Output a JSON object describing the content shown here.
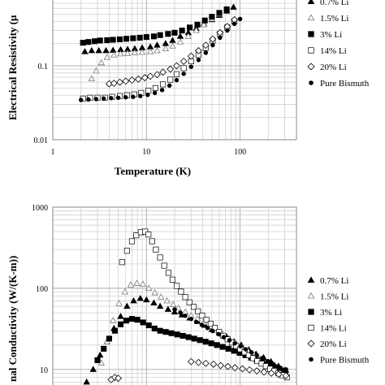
{
  "chart_data": [
    {
      "type": "scatter",
      "xscale": "log",
      "yscale": "log",
      "xlabel": "Temperature (K)",
      "ylabel": "Electrical Resistivity (μ",
      "xlim": [
        1,
        400
      ],
      "ylim": [
        0.01,
        1
      ],
      "xticks": [
        "1",
        "10",
        "100"
      ],
      "yticks": [
        "0.1",
        "0.01"
      ],
      "grid": true,
      "legend_position": "right",
      "series": [
        {
          "name": "0.7% Li",
          "marker": "triangle-filled",
          "x": [
            2.2,
            2.6,
            3.1,
            3.7,
            4.4,
            5.3,
            6.3,
            7.5,
            9,
            11,
            13,
            16,
            19,
            23,
            28,
            34,
            41,
            50,
            60,
            72,
            85
          ],
          "y": [
            0.155,
            0.16,
            0.16,
            0.16,
            0.162,
            0.165,
            0.167,
            0.17,
            0.175,
            0.18,
            0.19,
            0.2,
            0.22,
            0.25,
            0.28,
            0.32,
            0.37,
            0.42,
            0.48,
            0.55,
            0.62
          ]
        },
        {
          "name": "1.5% Li",
          "marker": "triangle-open",
          "x": [
            2.6,
            2.9,
            3.3,
            3.8,
            4.5,
            5.3,
            6.3,
            7.5,
            9,
            11,
            13,
            16,
            19,
            23,
            28,
            34,
            41,
            50,
            60,
            72
          ],
          "y": [
            0.067,
            0.085,
            0.11,
            0.13,
            0.14,
            0.145,
            0.147,
            0.15,
            0.152,
            0.155,
            0.16,
            0.17,
            0.185,
            0.21,
            0.25,
            0.3,
            0.36,
            0.43,
            0.5,
            0.58
          ]
        },
        {
          "name": "3% Li",
          "marker": "square-filled",
          "x": [
            2.1,
            2.4,
            2.8,
            3.2,
            3.8,
            4.4,
            5.2,
            6.1,
            7.2,
            8.5,
            10,
            12,
            14,
            17,
            20,
            24,
            29,
            35,
            42,
            50,
            60,
            72
          ],
          "y": [
            0.205,
            0.21,
            0.215,
            0.22,
            0.222,
            0.225,
            0.228,
            0.232,
            0.236,
            0.24,
            0.245,
            0.25,
            0.26,
            0.27,
            0.28,
            0.3,
            0.33,
            0.36,
            0.41,
            0.46,
            0.52,
            0.58
          ]
        },
        {
          "name": "14% Li",
          "marker": "square-open",
          "x": [
            2.1,
            2.5,
            3,
            3.6,
            4.3,
            5.2,
            6.2,
            7.4,
            8.8,
            10.5,
            12.5,
            15,
            18,
            21,
            25,
            30,
            36,
            43,
            51,
            61,
            73,
            87
          ],
          "y": [
            0.036,
            0.037,
            0.037,
            0.037,
            0.038,
            0.039,
            0.04,
            0.041,
            0.043,
            0.046,
            0.05,
            0.056,
            0.065,
            0.077,
            0.093,
            0.115,
            0.14,
            0.175,
            0.22,
            0.27,
            0.33,
            0.4
          ]
        },
        {
          "name": "20% Li",
          "marker": "diamond-open",
          "x": [
            4,
            4.5,
            5.2,
            6,
            7,
            8.2,
            9.6,
            11,
            13,
            15,
            18,
            21,
            25,
            30,
            36,
            43,
            51,
            61,
            73,
            87
          ],
          "y": [
            0.057,
            0.058,
            0.06,
            0.062,
            0.064,
            0.066,
            0.069,
            0.072,
            0.076,
            0.082,
            0.09,
            0.1,
            0.115,
            0.135,
            0.16,
            0.19,
            0.23,
            0.28,
            0.34,
            0.42
          ]
        },
        {
          "name": "Pure Bismuth",
          "marker": "dot",
          "x": [
            2,
            2.4,
            2.9,
            3.5,
            4.2,
            5,
            6,
            7.2,
            8.6,
            10.3,
            12.3,
            14.7,
            17.6,
            21,
            25,
            30,
            36,
            43,
            51,
            61,
            73,
            87,
            100
          ],
          "y": [
            0.0345,
            0.035,
            0.0355,
            0.036,
            0.0365,
            0.037,
            0.0375,
            0.038,
            0.039,
            0.0405,
            0.043,
            0.047,
            0.054,
            0.064,
            0.078,
            0.097,
            0.12,
            0.15,
            0.19,
            0.24,
            0.3,
            0.37,
            0.43
          ]
        }
      ]
    },
    {
      "type": "scatter",
      "xscale": "log",
      "yscale": "log",
      "xlabel": "",
      "ylabel": "nal Conductivity (W/(K-m))",
      "xlim": [
        1,
        400
      ],
      "ylim": [
        5,
        1000
      ],
      "yticks": [
        "1000",
        "100",
        "10"
      ],
      "grid": true,
      "legend_position": "right",
      "series": [
        {
          "name": "0.7% Li",
          "marker": "triangle-filled",
          "x": [
            1.9,
            2.3,
            2.7,
            3.2,
            3.8,
            4.5,
            5.3,
            6.2,
            7.3,
            8.6,
            10,
            12,
            14,
            17,
            20,
            24,
            29,
            35,
            42,
            50,
            60,
            72,
            86,
            103,
            124,
            148,
            178,
            214,
            257,
            308
          ],
          "y": [
            5.2,
            7,
            10,
            15,
            22,
            32,
            45,
            60,
            70,
            75,
            72,
            66,
            60,
            55,
            51,
            47,
            43,
            39,
            35,
            31,
            28,
            25,
            22,
            20,
            17.5,
            15.5,
            14,
            12.5,
            11,
            9.8
          ]
        },
        {
          "name": "1.5% Li",
          "marker": "triangle-open",
          "x": [
            3.3,
            3.8,
            4.4,
            5.1,
            5.9,
            6.8,
            7.9,
            9.2,
            10.6,
            12.3,
            14.3,
            16.6,
            19.3,
            22,
            26,
            30,
            35,
            41,
            48,
            56,
            65,
            76,
            89,
            104,
            121,
            141,
            165,
            193,
            226,
            264,
            308
          ],
          "y": [
            12,
            22,
            40,
            65,
            90,
            110,
            115,
            112,
            100,
            88,
            78,
            70,
            63,
            57,
            51,
            46,
            42,
            38,
            34,
            30,
            27,
            24,
            21.5,
            19,
            17,
            15,
            13.5,
            12,
            10.8,
            9.8,
            9
          ]
        },
        {
          "name": "3% Li",
          "marker": "square-filled",
          "x": [
            3,
            3.5,
            4,
            4.6,
            5.3,
            6.1,
            7,
            8,
            9.2,
            10.6,
            12.2,
            14,
            16.1,
            18.5,
            21.3,
            24.5,
            28.2,
            32.4,
            37.3,
            42.9,
            49.3,
            56.7,
            65.2,
            75,
            86.3,
            99,
            114,
            131,
            151,
            173,
            199,
            229,
            263,
            303
          ],
          "y": [
            13,
            18,
            24,
            30,
            36,
            40,
            42,
            41,
            38,
            35,
            32,
            30,
            29,
            28,
            27,
            26,
            25,
            24,
            23,
            22,
            21,
            20,
            19,
            18,
            17,
            16,
            15,
            14,
            13,
            12.2,
            11.5,
            10.8,
            10.2,
            9.7
          ]
        },
        {
          "name": "14% Li",
          "marker": "square-open",
          "x": [
            5.5,
            6.2,
            7,
            7.8,
            8.7,
            9.7,
            10.5,
            11.5,
            12.6,
            14,
            15.5,
            17.2,
            19,
            21.1,
            23.4,
            26,
            28.8,
            32,
            35.5,
            39.4,
            43.7,
            48.5,
            53.8,
            59.7,
            66.3,
            73.6,
            81.7,
            90.7,
            100.6,
            111.7,
            124,
            137.6,
            152.8,
            169.6,
            188.2,
            209,
            232,
            257,
            285,
            316
          ],
          "y": [
            210,
            290,
            380,
            450,
            490,
            500,
            460,
            380,
            300,
            240,
            190,
            155,
            128,
            107,
            91,
            78,
            67,
            59,
            52,
            46,
            41,
            36.5,
            32.5,
            29,
            26,
            23.5,
            21.5,
            19.5,
            17.8,
            16.3,
            15,
            13.8,
            12.7,
            11.8,
            11,
            10.2,
            9.6,
            9,
            8.5,
            8
          ]
        },
        {
          "name": "20% Li",
          "marker": "diamond-open",
          "x": [
            4.2,
            4.6,
            5,
            30,
            36,
            43,
            52,
            62,
            74,
            88,
            106,
            126,
            151,
            180,
            216,
            258,
            308
          ],
          "y": [
            7.5,
            8,
            7.8,
            12.5,
            12.2,
            11.9,
            11.6,
            11.2,
            10.9,
            10.5,
            10.2,
            9.9,
            9.6,
            9.3,
            9,
            8.7,
            8.4
          ]
        },
        {
          "name": "Pure Bismuth",
          "marker": "dot",
          "x": [
            20,
            23,
            26,
            30,
            34,
            39,
            45,
            51,
            59,
            67,
            77,
            88,
            101,
            115,
            132,
            151,
            173,
            198,
            226,
            258,
            295
          ],
          "y": [
            55,
            50,
            46,
            42,
            38.5,
            35.5,
            32.5,
            29.8,
            27.3,
            25,
            22.9,
            21,
            19.3,
            17.7,
            16.3,
            15,
            13.8,
            12.7,
            11.7,
            10.8,
            10
          ]
        }
      ]
    }
  ]
}
